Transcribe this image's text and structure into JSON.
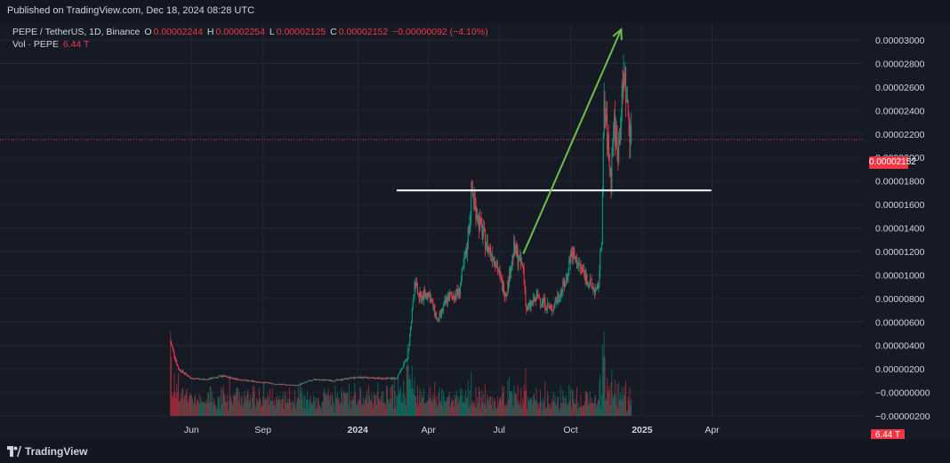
{
  "header": {
    "published": "Published on TradingView.com, Dec 18, 2024 08:28 UTC"
  },
  "legend": {
    "symbol": "PEPE / TetherUS, 1D, Binance",
    "open_label": "O",
    "open": "0.00002244",
    "high_label": "H",
    "high": "0.00002254",
    "low_label": "L",
    "low": "0.00002125",
    "close_label": "C",
    "close": "0.00002152",
    "change": "−0.00000092 (−4.10%)",
    "vol_label": "Vol · PEPE",
    "vol_value": "6.44 T"
  },
  "price_tag": "0.00002152",
  "vol_tag": "6.44 T",
  "footer": {
    "brand": "TradingView"
  },
  "colors": {
    "up": "#089981",
    "down": "#f23645",
    "arrow": "#6ebf4a",
    "level": "#ffffff",
    "grid": "#232632",
    "axis_text": "#d1d4dc"
  },
  "chart_data": {
    "type": "candlestick",
    "title": "PEPE / TetherUS, 1D, Binance",
    "x_ticks": [
      "Jun",
      "Sep",
      "2024",
      "Apr",
      "Jul",
      "Oct",
      "2025",
      "Apr"
    ],
    "y_ticks": [
      "0.00003000",
      "0.00002800",
      "0.00002600",
      "0.00002400",
      "0.00002200",
      "0.00002000",
      "0.00001800",
      "0.00001600",
      "0.00001400",
      "0.00001200",
      "0.00001000",
      "0.00000800",
      "0.00000600",
      "0.00000400",
      "0.00000200",
      "−0.00000000",
      "−0.00000200"
    ],
    "ylim": [
      -2e-06,
      3.1e-05
    ],
    "price_path": [
      [
        "2023-05-05",
        4.3e-06
      ],
      [
        "2023-05-15",
        2e-06
      ],
      [
        "2023-06-01",
        1.2e-06
      ],
      [
        "2023-06-20",
        1.1e-06
      ],
      [
        "2023-07-10",
        1.4e-06
      ],
      [
        "2023-08-01",
        1.1e-06
      ],
      [
        "2023-08-25",
        9e-07
      ],
      [
        "2023-09-20",
        7e-07
      ],
      [
        "2023-10-15",
        6e-07
      ],
      [
        "2023-11-05",
        1.1e-06
      ],
      [
        "2023-12-01",
        1e-06
      ],
      [
        "2024-01-01",
        1.3e-06
      ],
      [
        "2024-01-25",
        1.2e-06
      ],
      [
        "2024-02-20",
        1.2e-06
      ],
      [
        "2024-03-05",
        3e-06
      ],
      [
        "2024-03-10",
        6e-06
      ],
      [
        "2024-03-14",
        9.5e-06
      ],
      [
        "2024-03-20",
        8e-06
      ],
      [
        "2024-04-01",
        8.5e-06
      ],
      [
        "2024-04-13",
        6e-06
      ],
      [
        "2024-04-25",
        8e-06
      ],
      [
        "2024-05-10",
        8.5e-06
      ],
      [
        "2024-05-20",
        1.2e-05
      ],
      [
        "2024-05-27",
        1.72e-05
      ],
      [
        "2024-06-05",
        1.45e-05
      ],
      [
        "2024-06-15",
        1.25e-05
      ],
      [
        "2024-06-25",
        1.15e-05
      ],
      [
        "2024-07-05",
        9e-06
      ],
      [
        "2024-07-10",
        8.5e-06
      ],
      [
        "2024-07-20",
        1.22e-05
      ],
      [
        "2024-08-01",
        1.05e-05
      ],
      [
        "2024-08-05",
        7e-06
      ],
      [
        "2024-08-20",
        8.2e-06
      ],
      [
        "2024-09-06",
        7e-06
      ],
      [
        "2024-09-25",
        9.5e-06
      ],
      [
        "2024-10-01",
        1.18e-05
      ],
      [
        "2024-10-15",
        1.05e-05
      ],
      [
        "2024-10-28",
        9e-06
      ],
      [
        "2024-11-05",
        8.5e-06
      ],
      [
        "2024-11-10",
        1.35e-05
      ],
      [
        "2024-11-13",
        2.45e-05
      ],
      [
        "2024-11-18",
        2.1e-05
      ],
      [
        "2024-11-22",
        1.8e-05
      ],
      [
        "2024-11-25",
        2.3e-05
      ],
      [
        "2024-12-01",
        2.05e-05
      ],
      [
        "2024-12-09",
        2.75e-05
      ],
      [
        "2024-12-13",
        2.4e-05
      ],
      [
        "2024-12-18",
        2.15e-05
      ]
    ],
    "volume_spikes": [
      [
        "2023-05-05",
        1.0
      ],
      [
        "2024-03-05",
        0.85
      ],
      [
        "2024-11-13",
        1.0
      ],
      [
        "2024-12-09",
        0.35
      ]
    ],
    "annotations": {
      "horizontal_level": {
        "price": 1.72e-05,
        "from": "2024-02-20",
        "to": "2025-03-31"
      },
      "arrow": {
        "from_date": "2024-08-01",
        "from_price": 1.18e-05,
        "to_date": "2024-12-05",
        "to_price": 3.09e-05
      }
    },
    "last_price": 2.152e-05
  }
}
